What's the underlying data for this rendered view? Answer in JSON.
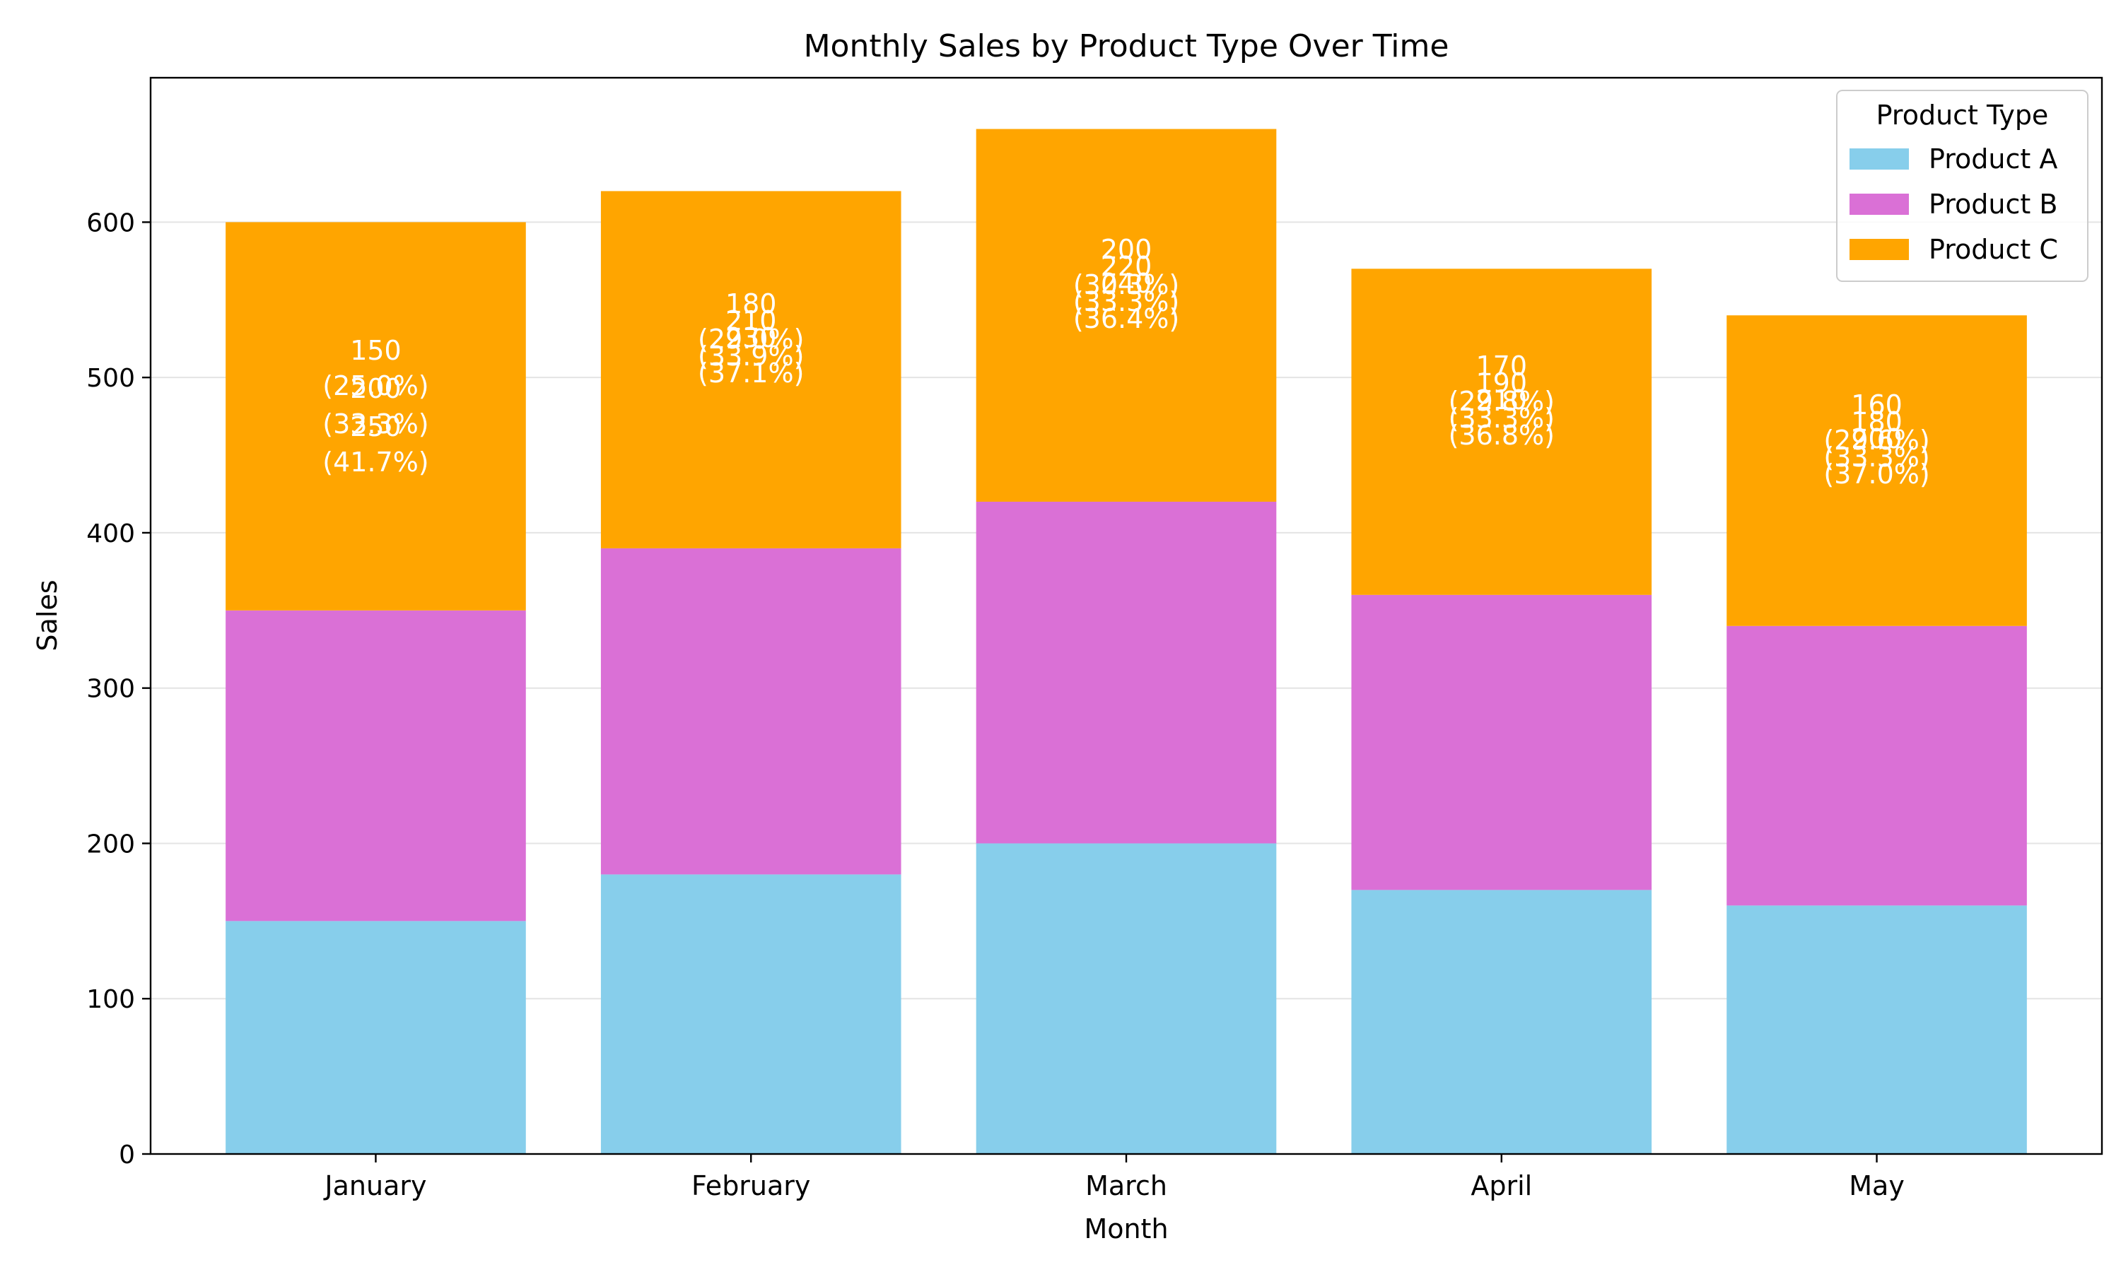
{
  "chart_data": {
    "type": "bar",
    "stacked": true,
    "title": "Monthly Sales by Product Type Over Time",
    "xlabel": "Month",
    "ylabel": "Sales",
    "categories": [
      "January",
      "February",
      "March",
      "April",
      "May"
    ],
    "series": [
      {
        "name": "Product A",
        "color": "#87CEEB",
        "values": [
          150,
          180,
          200,
          170,
          160
        ]
      },
      {
        "name": "Product B",
        "color": "#DA70D6",
        "values": [
          200,
          210,
          220,
          190,
          180
        ]
      },
      {
        "name": "Product C",
        "color": "#FFA500",
        "values": [
          250,
          230,
          240,
          210,
          200
        ]
      }
    ],
    "bar_labels": [
      [
        "150\n(25.0%)",
        "200\n(33.3%)",
        "250\n(41.7%)"
      ],
      [
        "180\n(29.0%)",
        "210\n(33.9%)",
        "230\n(37.1%)"
      ],
      [
        "200\n(30.3%)",
        "220\n(33.3%)",
        "240\n(36.4%)"
      ],
      [
        "170\n(29.8%)",
        "190\n(33.3%)",
        "210\n(36.8%)"
      ],
      [
        "160\n(29.6%)",
        "180\n(33.3%)",
        "200\n(37.0%)"
      ]
    ],
    "ylim": [
      0,
      693
    ],
    "yticks": [
      0,
      100,
      200,
      300,
      400,
      500,
      600
    ],
    "grid": "y",
    "legend": {
      "title": "Product Type",
      "position": "top-right"
    }
  }
}
